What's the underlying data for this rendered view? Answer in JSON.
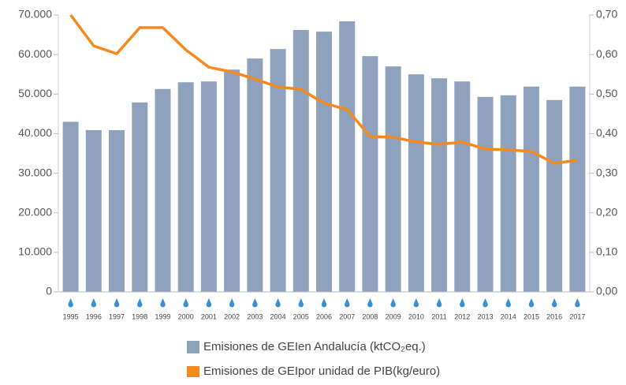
{
  "chart_data": {
    "type": "bar_line",
    "categories": [
      "1995",
      "1996",
      "1997",
      "1998",
      "1999",
      "2000",
      "2001",
      "2002",
      "2003",
      "2004",
      "2005",
      "2006",
      "2007",
      "2008",
      "2009",
      "2010",
      "2011",
      "2012",
      "2013",
      "2014",
      "2015",
      "2016",
      "2017"
    ],
    "series": [
      {
        "name": "Emisiones de GEIen Andalucía (ktCO₂eq.)",
        "type": "bar",
        "color": "#8fa2bd",
        "values": [
          43000,
          40900,
          40900,
          47900,
          51300,
          53000,
          53200,
          56200,
          59000,
          61400,
          66200,
          65800,
          68400,
          59600,
          57000,
          55000,
          54000,
          53200,
          49300,
          49700,
          51900,
          48500,
          51900
        ]
      },
      {
        "name": "Emisiones de GEIpor unidad de PIB(kg/euro)",
        "type": "line",
        "axis": "y2",
        "color": "#f5891f",
        "values": [
          0.7,
          0.622,
          0.602,
          0.668,
          0.668,
          0.612,
          0.568,
          0.556,
          0.538,
          0.518,
          0.512,
          0.477,
          0.461,
          0.393,
          0.391,
          0.379,
          0.373,
          0.379,
          0.361,
          0.359,
          0.355,
          0.325,
          0.333
        ]
      }
    ],
    "ylim": [
      0,
      70000
    ],
    "yticks": [
      0,
      {
        "value": 10000,
        "label": "10.000"
      },
      {
        "value": 20000,
        "label": "20.000"
      },
      {
        "value": 30000,
        "label": "30.000"
      },
      {
        "value": 40000,
        "label": "40.000"
      },
      {
        "value": 50000,
        "label": "50.000"
      },
      {
        "value": 60000,
        "label": "60.000"
      },
      {
        "value": 70000,
        "label": "70.000"
      }
    ],
    "y2lim": [
      0,
      0.7
    ],
    "y2ticks": [
      {
        "value": 0,
        "label": "0,00"
      },
      {
        "value": 0.1,
        "label": "0,10"
      },
      {
        "value": 0.2,
        "label": "0,20"
      },
      {
        "value": 0.3,
        "label": "0,30"
      },
      {
        "value": 0.4,
        "label": "0,40"
      },
      {
        "value": 0.5,
        "label": "0,50"
      },
      {
        "value": 0.6,
        "label": "0,60"
      },
      {
        "value": 0.7,
        "label": "0,70"
      }
    ],
    "grid": false
  }
}
